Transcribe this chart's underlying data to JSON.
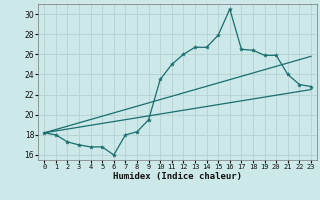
{
  "xlabel": "Humidex (Indice chaleur)",
  "bg_color": "#cce8e8",
  "grid_color": "#b8d4d4",
  "line_color": "#1a6e6e",
  "xlim": [
    -0.5,
    23.5
  ],
  "ylim": [
    15.5,
    31.0
  ],
  "yticks": [
    16,
    18,
    20,
    22,
    24,
    26,
    28,
    30
  ],
  "xticks": [
    0,
    1,
    2,
    3,
    4,
    5,
    6,
    7,
    8,
    9,
    10,
    11,
    12,
    13,
    14,
    15,
    16,
    17,
    18,
    19,
    20,
    21,
    22,
    23
  ],
  "series1_x": [
    0,
    1,
    2,
    3,
    4,
    5,
    6,
    7,
    8,
    9,
    10,
    11,
    12,
    13,
    14,
    15,
    16,
    17,
    18,
    19,
    20,
    21,
    22,
    23
  ],
  "series1_y": [
    18.2,
    18.0,
    17.3,
    17.0,
    16.8,
    16.8,
    16.0,
    18.0,
    18.3,
    19.5,
    23.5,
    25.0,
    26.0,
    26.7,
    26.7,
    27.9,
    30.5,
    26.5,
    26.4,
    25.9,
    25.9,
    24.0,
    23.0,
    22.8
  ],
  "series2_x": [
    0,
    23
  ],
  "series2_y": [
    18.2,
    25.8
  ],
  "series3_x": [
    0,
    23
  ],
  "series3_y": [
    18.2,
    22.5
  ]
}
